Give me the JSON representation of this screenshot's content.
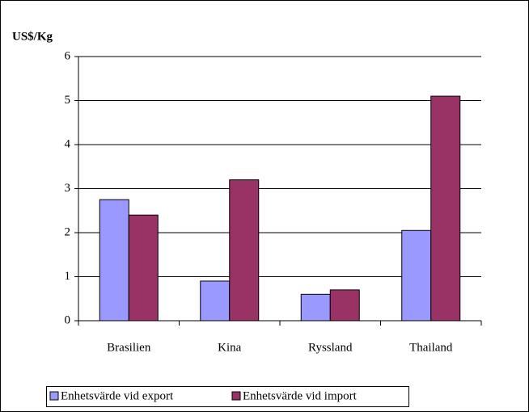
{
  "chart_data": {
    "type": "bar",
    "y_label": "US$/Kg",
    "categories": [
      "Brasilien",
      "Kina",
      "Ryssland",
      "Thailand"
    ],
    "series": [
      {
        "name": "Enhetsvärde vid export",
        "color": "#9999ff",
        "values": [
          2.75,
          0.9,
          0.6,
          2.05
        ]
      },
      {
        "name": "Enhetsvärde vid import",
        "color": "#993366",
        "values": [
          2.4,
          3.2,
          0.7,
          5.1
        ]
      }
    ],
    "ylim": [
      0,
      6
    ],
    "yticks": [
      0,
      1,
      2,
      3,
      4,
      5,
      6
    ],
    "grid": true,
    "legend": "bottom"
  }
}
